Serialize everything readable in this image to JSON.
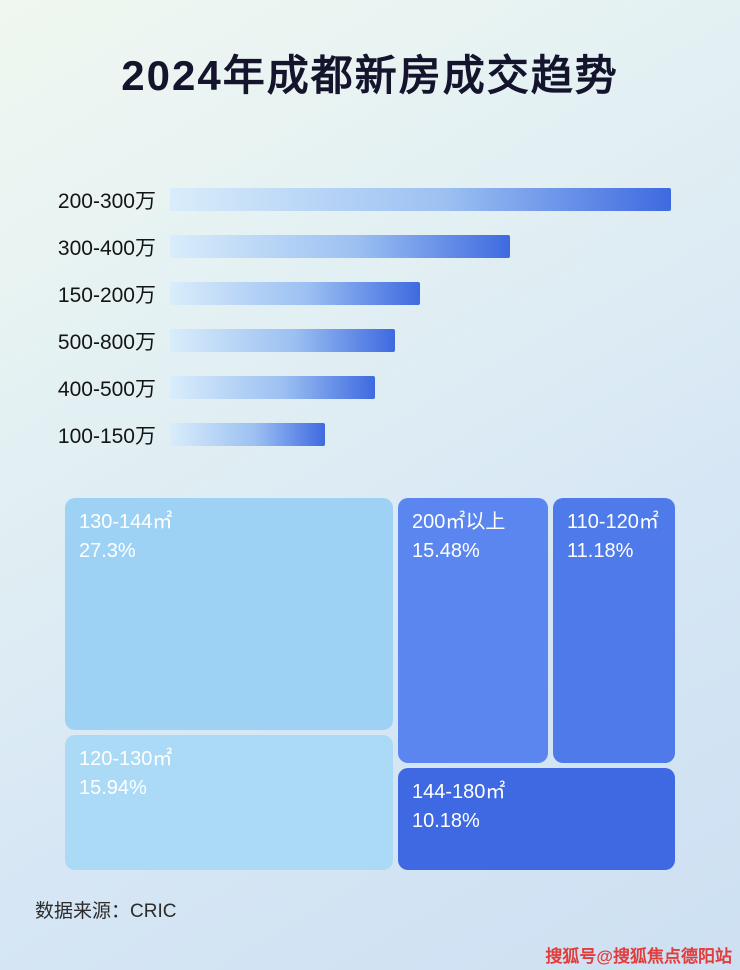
{
  "title": "2024年成都新房成交趋势",
  "chart_data": [
    {
      "type": "bar",
      "orientation": "horizontal",
      "title": "2024年成都新房成交趋势",
      "categories": [
        "200-300万",
        "300-400万",
        "150-200万",
        "500-800万",
        "400-500万",
        "100-150万"
      ],
      "values": [
        100,
        68,
        50,
        45,
        41,
        31
      ],
      "value_note": "relative bar lengths (max = 100), no numeric axis shown",
      "xlabel": "",
      "ylabel": "",
      "grid": false,
      "legend": false
    },
    {
      "type": "treemap",
      "items": [
        {
          "label": "130-144㎡",
          "value": "27.3%",
          "color": "#9ed2f5"
        },
        {
          "label": "120-130㎡",
          "value": "15.94%",
          "color": "#abdaf7"
        },
        {
          "label": "200㎡以上",
          "value": "15.48%",
          "color": "#5c86ef"
        },
        {
          "label": "110-120㎡",
          "value": "11.18%",
          "color": "#4f7aea"
        },
        {
          "label": "144-180㎡",
          "value": "10.18%",
          "color": "#3f69e3"
        }
      ]
    }
  ],
  "footer": {
    "source": "数据来源：CRIC"
  },
  "watermark": "搜狐号@搜狐焦点德阳站",
  "colors": {
    "bar_gradient_start": "#d9edfb",
    "bar_gradient_end": "#3e6ae0",
    "title": "#14142d",
    "watermark": "#e23d3d"
  }
}
